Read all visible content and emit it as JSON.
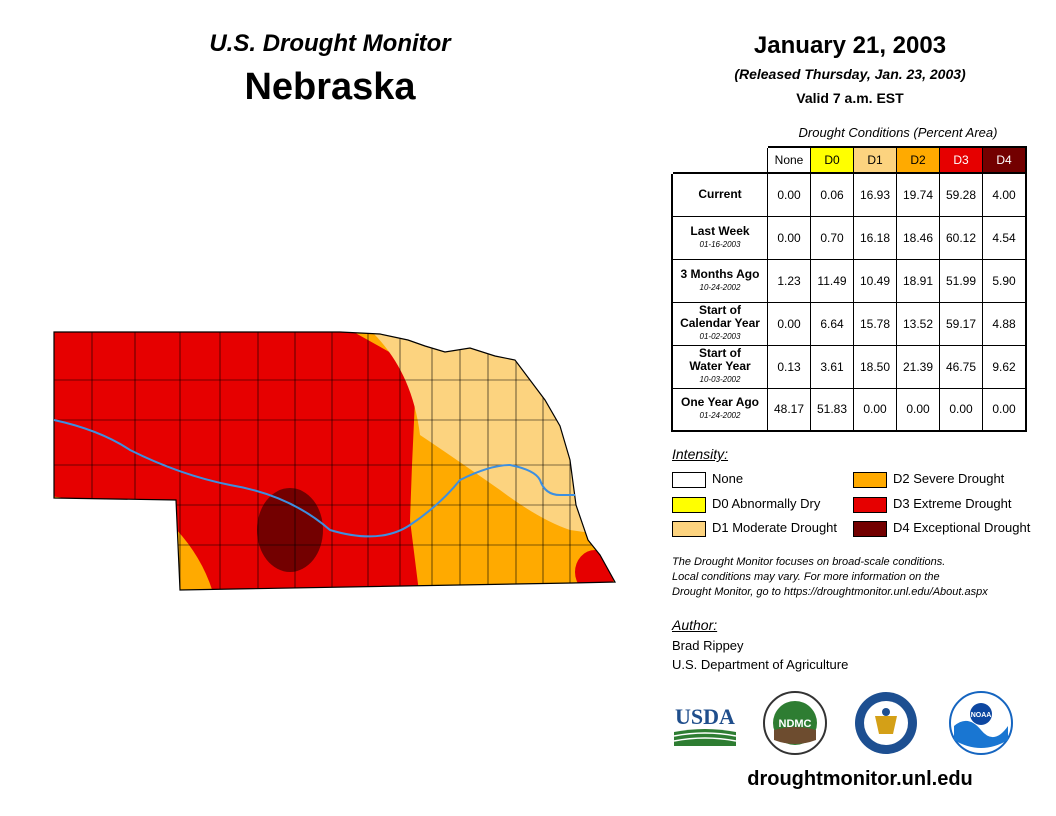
{
  "header": {
    "monitor_title": "U.S. Drought Monitor",
    "state": "Nebraska",
    "date": "January 21, 2003",
    "released": "(Released Thursday, Jan. 23, 2003)",
    "valid": "Valid 7 a.m. EST"
  },
  "table": {
    "caption": "Drought Conditions (Percent Area)",
    "columns": [
      "None",
      "D0",
      "D1",
      "D2",
      "D3",
      "D4"
    ],
    "rows": [
      {
        "label": "Current",
        "label2": "",
        "date": "",
        "values": [
          "0.00",
          "0.06",
          "16.93",
          "19.74",
          "59.28",
          "4.00"
        ]
      },
      {
        "label": "Last Week",
        "label2": "",
        "date": "01-16-2003",
        "values": [
          "0.00",
          "0.70",
          "16.18",
          "18.46",
          "60.12",
          "4.54"
        ]
      },
      {
        "label": "3 Months Ago",
        "label2": "",
        "date": "10-24-2002",
        "values": [
          "1.23",
          "11.49",
          "10.49",
          "18.91",
          "51.99",
          "5.90"
        ]
      },
      {
        "label": "Start of",
        "label2": "Calendar Year",
        "date": "01-02-2003",
        "values": [
          "0.00",
          "6.64",
          "15.78",
          "13.52",
          "59.17",
          "4.88"
        ]
      },
      {
        "label": "Start of",
        "label2": "Water Year",
        "date": "10-03-2002",
        "values": [
          "0.13",
          "3.61",
          "18.50",
          "21.39",
          "46.75",
          "9.62"
        ]
      },
      {
        "label": "One Year Ago",
        "label2": "",
        "date": "01-24-2002",
        "values": [
          "48.17",
          "51.83",
          "0.00",
          "0.00",
          "0.00",
          "0.00"
        ]
      }
    ]
  },
  "legend": {
    "title": "Intensity:",
    "items": [
      {
        "label": "None",
        "color": "#ffffff"
      },
      {
        "label": "D0 Abnormally Dry",
        "color": "#ffff00"
      },
      {
        "label": "D1 Moderate Drought",
        "color": "#fcd37f"
      },
      {
        "label": "D2 Severe Drought",
        "color": "#ffaa00"
      },
      {
        "label": "D3 Extreme Drought",
        "color": "#e60000"
      },
      {
        "label": "D4 Exceptional Drought",
        "color": "#730000"
      }
    ]
  },
  "note": {
    "line1": "The Drought Monitor focuses on broad-scale conditions.",
    "line2": "Local conditions may vary. For more information on the",
    "line3": "Drought Monitor, go to https://droughtmonitor.unl.edu/About.aspx"
  },
  "author": {
    "title": "Author:",
    "name": "Brad Rippey",
    "org": "U.S. Department of Agriculture"
  },
  "logos": {
    "usda": "USDA",
    "ndmc": "NDMC",
    "noaa": "NOAA"
  },
  "site": "droughtmonitor.unl.edu"
}
